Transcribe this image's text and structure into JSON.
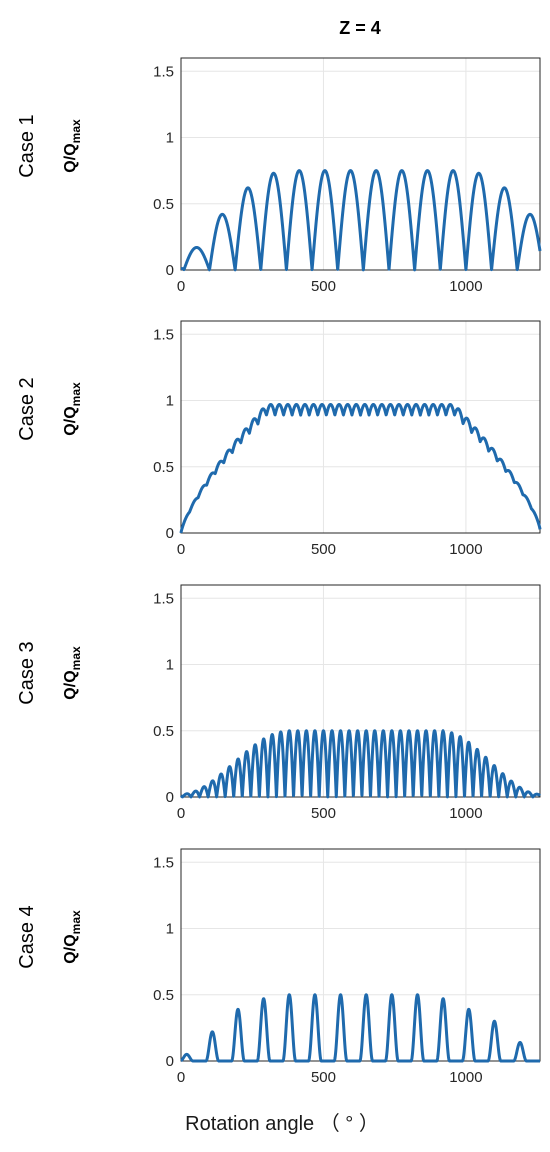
{
  "title": "Z = 4",
  "xlabel": "Rotation angle  （ ° ）",
  "colors": {
    "series": "#1f6aad",
    "grid": "#e6e6e6",
    "axes": "#262626"
  },
  "chart_data": [
    {
      "type": "line",
      "panel_label": "Case 1",
      "ylabel_main": "Q/Q",
      "ylabel_sub": "max",
      "xlim": [
        0,
        1260
      ],
      "ylim": [
        0,
        1.6
      ],
      "xticks": [
        "0",
        "500",
        "1000"
      ],
      "yticks": [
        "0",
        "0.5",
        "1",
        "1.5"
      ],
      "grid": true,
      "series": [
        {
          "profile": "arches",
          "period_deg": 90,
          "peaks": [
            0.17,
            0.42,
            0.62,
            0.73,
            0.75,
            0.75,
            0.75,
            0.75,
            0.75,
            0.75,
            0.75,
            0.73,
            0.62,
            0.42,
            0.17
          ],
          "minima": 0,
          "start": 0.01,
          "end": 0.0
        }
      ]
    },
    {
      "type": "line",
      "panel_label": "Case 2",
      "ylabel_main": "Q/Q",
      "ylabel_sub": "max",
      "xlim": [
        0,
        1260
      ],
      "ylim": [
        0,
        1.6
      ],
      "xticks": [
        "0",
        "500",
        "1000"
      ],
      "yticks": [
        "0",
        "0.5",
        "1",
        "1.5"
      ],
      "grid": true,
      "series": [
        {
          "profile": "plateau",
          "plateau": 0.97,
          "ripple_period_deg": 30,
          "ripple_amplitude": 0.08,
          "ramp_up_end_deg": 300,
          "ramp_down_start_deg": 960,
          "start": 0.0,
          "end": 0.03
        }
      ]
    },
    {
      "type": "line",
      "panel_label": "Case 3",
      "ylabel_main": "Q/Q",
      "ylabel_sub": "max",
      "xlim": [
        0,
        1260
      ],
      "ylim": [
        0,
        1.6
      ],
      "xticks": [
        "0",
        "500",
        "1000"
      ],
      "yticks": [
        "0",
        "0.5",
        "1",
        "1.5"
      ],
      "grid": true,
      "series": [
        {
          "profile": "arches",
          "period_deg": 30,
          "plateau": 0.5,
          "ramp_up_end_deg": 370,
          "ramp_down_start_deg": 920,
          "minima": 0,
          "start": 0.0,
          "end": 0.0
        }
      ]
    },
    {
      "type": "line",
      "panel_label": "Case 4",
      "ylabel_main": "Q/Q",
      "ylabel_sub": "max",
      "xlim": [
        0,
        1260
      ],
      "ylim": [
        0,
        1.6
      ],
      "xticks": [
        "0",
        "500",
        "1000"
      ],
      "yticks": [
        "0",
        "0.5",
        "1",
        "1.5"
      ],
      "grid": true,
      "series": [
        {
          "profile": "pulses",
          "period_deg": 90,
          "pulse_width_deg": 45,
          "peak_positions_deg": [
            20,
            110,
            200,
            290,
            380,
            470,
            560,
            650,
            740,
            830,
            920,
            1010,
            1100,
            1190
          ],
          "peaks": [
            0.05,
            0.22,
            0.39,
            0.47,
            0.5,
            0.5,
            0.5,
            0.5,
            0.5,
            0.5,
            0.47,
            0.39,
            0.3,
            0.14
          ],
          "baseline": 0.0
        }
      ]
    }
  ]
}
